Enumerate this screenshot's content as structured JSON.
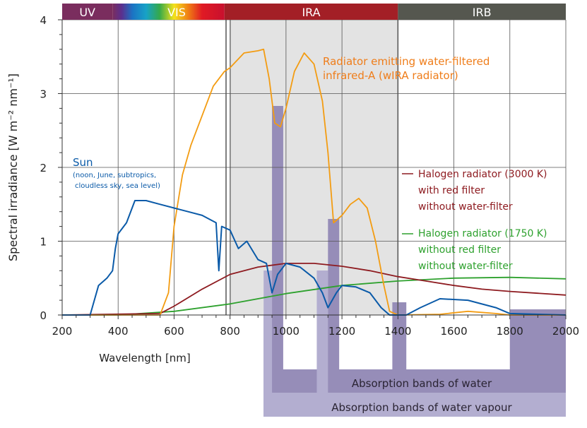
{
  "chart_data": {
    "type": "line",
    "xlabel": "Wavelength [nm]",
    "ylabel": "Spectral irradiance [W m⁻² nm⁻¹]",
    "xlim": [
      200,
      2000
    ],
    "ylim": [
      0,
      4
    ],
    "xticks": [
      "200",
      "400",
      "600",
      "800",
      "1000",
      "1200",
      "1400",
      "1600",
      "1800",
      "2000"
    ],
    "yticks": [
      "0",
      "1",
      "2",
      "3",
      "4"
    ],
    "grid": true,
    "regions": [
      {
        "label": "UV",
        "from": 200,
        "to": 380,
        "color": "#7a2d5e"
      },
      {
        "label": "VIS",
        "from": 380,
        "to": 780,
        "color": "spectrum"
      },
      {
        "label": "IRA",
        "from": 780,
        "to": 1400,
        "color": "#a31f26"
      },
      {
        "label": "IRB",
        "from": 1400,
        "to": 2000,
        "color": "#55574f"
      }
    ],
    "water_bands_label": "Absorption bands of water",
    "vapour_bands_label": "Absorption bands of water vapour",
    "water_bands": [
      [
        950,
        990
      ],
      [
        1150,
        1190
      ],
      [
        1380,
        1430
      ],
      [
        1800,
        2000
      ]
    ],
    "vapour_bands": [
      [
        920,
        950
      ],
      [
        1110,
        1150
      ]
    ],
    "series": [
      {
        "name": "Radiator emitting water-filtered",
        "name2": "infrared-A (wIRA radiator)",
        "color": "#f39c12",
        "x": [
          200,
          550,
          580,
          600,
          630,
          660,
          700,
          740,
          780,
          800,
          850,
          900,
          920,
          940,
          960,
          980,
          1000,
          1030,
          1065,
          1100,
          1130,
          1150,
          1170,
          1200,
          1230,
          1260,
          1290,
          1320,
          1350,
          1370,
          1400,
          1550,
          1650,
          1750,
          1800,
          2000
        ],
        "y": [
          0,
          0,
          0.3,
          1.2,
          1.9,
          2.3,
          2.7,
          3.1,
          3.3,
          3.35,
          3.55,
          3.58,
          3.6,
          3.2,
          2.6,
          2.55,
          2.8,
          3.3,
          3.55,
          3.4,
          2.9,
          2.2,
          1.25,
          1.35,
          1.5,
          1.58,
          1.45,
          1.0,
          0.4,
          0.05,
          0,
          0.01,
          0.05,
          0.02,
          0,
          0
        ]
      },
      {
        "name": "Sun",
        "note1": "(noon, June, subtropics,",
        "note2": "cloudless sky, sea level)",
        "color": "#0a5aa8",
        "x": [
          200,
          300,
          330,
          360,
          380,
          390,
          400,
          430,
          460,
          500,
          550,
          600,
          650,
          700,
          750,
          760,
          770,
          800,
          830,
          860,
          900,
          930,
          950,
          970,
          1000,
          1050,
          1100,
          1130,
          1150,
          1180,
          1200,
          1250,
          1300,
          1340,
          1370,
          1430,
          1480,
          1550,
          1650,
          1750,
          1800,
          2000
        ],
        "y": [
          0,
          0,
          0.4,
          0.5,
          0.6,
          0.9,
          1.1,
          1.25,
          1.55,
          1.55,
          1.5,
          1.45,
          1.4,
          1.35,
          1.25,
          0.6,
          1.2,
          1.15,
          0.9,
          1.0,
          0.75,
          0.7,
          0.3,
          0.55,
          0.7,
          0.65,
          0.5,
          0.3,
          0.1,
          0.3,
          0.4,
          0.38,
          0.3,
          0.1,
          0,
          0,
          0.1,
          0.22,
          0.2,
          0.1,
          0.02,
          0
        ]
      },
      {
        "name": "Halogen radiator (3000 K)",
        "name2": "with red filter",
        "name3": "without water-filter",
        "color": "#8e1b20",
        "x": [
          200,
          550,
          600,
          700,
          800,
          900,
          1000,
          1100,
          1200,
          1300,
          1400,
          1500,
          1600,
          1700,
          1800,
          2000
        ],
        "y": [
          0,
          0.02,
          0.12,
          0.35,
          0.55,
          0.65,
          0.7,
          0.7,
          0.66,
          0.6,
          0.52,
          0.46,
          0.4,
          0.35,
          0.32,
          0.27
        ]
      },
      {
        "name": "Halogen radiator (1750 K)",
        "name2": "without red filter",
        "name3": "without water-filter",
        "color": "#2ea12e",
        "x": [
          200,
          400,
          600,
          800,
          1000,
          1200,
          1400,
          1600,
          1800,
          2000
        ],
        "y": [
          0,
          0,
          0.05,
          0.15,
          0.29,
          0.4,
          0.46,
          0.5,
          0.51,
          0.49
        ]
      }
    ]
  }
}
